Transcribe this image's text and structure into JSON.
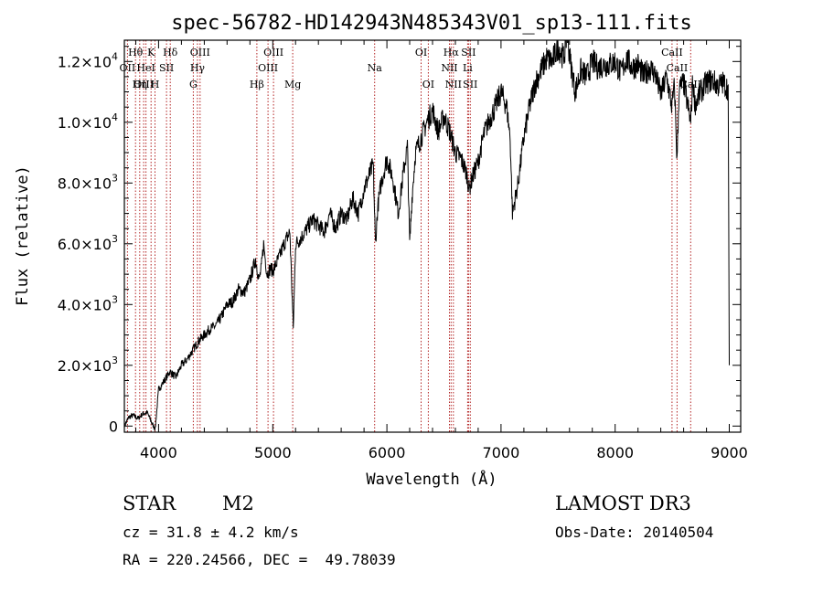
{
  "chart_data": {
    "type": "line",
    "title": "spec-56782-HD142943N485343V01_sp13-111.fits",
    "xlabel": "Wavelength (Å)",
    "ylabel": "Flux (relative)",
    "xlim": [
      3700,
      9100
    ],
    "ylim": [
      -200,
      12700
    ],
    "xticks": [
      4000,
      5000,
      6000,
      7000,
      8000,
      9000
    ],
    "xtick_labels": [
      "4000",
      "5000",
      "6000",
      "7000",
      "8000",
      "9000"
    ],
    "yticks": [
      0,
      2000,
      4000,
      6000,
      8000,
      10000,
      12000
    ],
    "ytick_labels": [
      {
        "mant": "0",
        "exp": ""
      },
      {
        "mant": "2.0×10",
        "exp": "3"
      },
      {
        "mant": "4.0×10",
        "exp": "3"
      },
      {
        "mant": "6.0×10",
        "exp": "3"
      },
      {
        "mant": "8.0×10",
        "exp": "3"
      },
      {
        "mant": "1.0×10",
        "exp": "4"
      },
      {
        "mant": "1.2×10",
        "exp": "4"
      }
    ],
    "grid": false,
    "line_color": "#000000",
    "marker_color": "#b22222",
    "series": [
      {
        "x": [
          3700,
          3740,
          3780,
          3820,
          3860,
          3900,
          3940,
          3970,
          4000,
          4050,
          4100,
          4150,
          4200,
          4250,
          4300,
          4350,
          4400,
          4450,
          4500,
          4550,
          4600,
          4650,
          4700,
          4750,
          4800,
          4850,
          4880,
          4900,
          4920,
          4950,
          4980,
          5000,
          5050,
          5100,
          5150,
          5180,
          5200,
          5250,
          5300,
          5350,
          5400,
          5450,
          5500,
          5550,
          5600,
          5650,
          5700,
          5750,
          5800,
          5850,
          5880,
          5900,
          5920,
          5950,
          6000,
          6050,
          6100,
          6150,
          6180,
          6200,
          6220,
          6250,
          6300,
          6350,
          6400,
          6450,
          6500,
          6550,
          6600,
          6650,
          6700,
          6720,
          6750,
          6800,
          6850,
          6900,
          6950,
          7000,
          7050,
          7080,
          7100,
          7120,
          7150,
          7200,
          7250,
          7300,
          7350,
          7400,
          7450,
          7500,
          7550,
          7580,
          7600,
          7650,
          7700,
          7750,
          7800,
          7850,
          7900,
          7950,
          8000,
          8050,
          8100,
          8150,
          8200,
          8250,
          8300,
          8350,
          8400,
          8450,
          8498,
          8520,
          8542,
          8560,
          8600,
          8662,
          8680,
          8700,
          8750,
          8800,
          8850,
          8900,
          8950,
          8990,
          9000
        ],
        "y": [
          0,
          300,
          350,
          250,
          400,
          450,
          100,
          -100,
          1200,
          1500,
          1800,
          1600,
          2000,
          2200,
          2500,
          2800,
          3000,
          3200,
          3300,
          3600,
          4000,
          4100,
          4500,
          4400,
          4800,
          5500,
          4800,
          5200,
          6000,
          5000,
          5200,
          5100,
          5500,
          6000,
          6400,
          3200,
          6000,
          6200,
          6500,
          6800,
          6600,
          6400,
          7000,
          6500,
          7000,
          6800,
          7500,
          7000,
          7800,
          8300,
          8600,
          6000,
          7200,
          8000,
          8800,
          8200,
          7000,
          8500,
          9200,
          6000,
          7500,
          9000,
          9500,
          10000,
          10400,
          9700,
          10200,
          9700,
          9000,
          8800,
          8300,
          7800,
          8200,
          8700,
          9600,
          10100,
          10500,
          11000,
          10500,
          9500,
          7000,
          7400,
          8000,
          9500,
          10500,
          11300,
          11700,
          12100,
          12000,
          12500,
          12100,
          13000,
          12200,
          11000,
          11700,
          11500,
          12000,
          11800,
          11900,
          11900,
          12000,
          11600,
          12100,
          11800,
          11900,
          11500,
          11800,
          11600,
          10900,
          11500,
          10500,
          11200,
          8700,
          11100,
          11300,
          10000,
          11400,
          10600,
          11000,
          11300,
          11400,
          11200,
          11300,
          11100,
          2000
        ]
      }
    ],
    "line_labels": [
      {
        "label": "Hθ",
        "wl": 3798,
        "row": 1
      },
      {
        "label": "OII",
        "wl": 3727,
        "row": 2
      },
      {
        "label": "OIII",
        "wl": 3869,
        "row": 3
      },
      {
        "label": "Hη",
        "wl": 3835,
        "row": 3
      },
      {
        "label": "K",
        "wl": 3934,
        "row": 1
      },
      {
        "label": "HeI",
        "wl": 3889,
        "row": 2
      },
      {
        "label": "SII",
        "wl": 4069,
        "row": 2
      },
      {
        "label": "H",
        "wl": 3968,
        "row": 3
      },
      {
        "label": "Hδ",
        "wl": 4102,
        "row": 1
      },
      {
        "label": "OIII",
        "wl": 4363,
        "row": 1
      },
      {
        "label": "Hγ",
        "wl": 4340,
        "row": 2
      },
      {
        "label": "G",
        "wl": 4304,
        "row": 3
      },
      {
        "label": "Hβ",
        "wl": 4861,
        "row": 3
      },
      {
        "label": "OIII",
        "wl": 5007,
        "row": 1
      },
      {
        "label": "OIII",
        "wl": 4959,
        "row": 2
      },
      {
        "label": "Mg",
        "wl": 5175,
        "row": 3
      },
      {
        "label": "Na",
        "wl": 5893,
        "row": 2
      },
      {
        "label": "OI",
        "wl": 6300,
        "row": 1
      },
      {
        "label": "OI",
        "wl": 6363,
        "row": 3
      },
      {
        "label": "Hα",
        "wl": 6563,
        "row": 1
      },
      {
        "label": "SII",
        "wl": 6716,
        "row": 1
      },
      {
        "label": "NII",
        "wl": 6548,
        "row": 2
      },
      {
        "label": "Li",
        "wl": 6708,
        "row": 2
      },
      {
        "label": "NII",
        "wl": 6583,
        "row": 3
      },
      {
        "label": "SII",
        "wl": 6731,
        "row": 3
      },
      {
        "label": "CaII",
        "wl": 8498,
        "row": 1
      },
      {
        "label": "CaII",
        "wl": 8542,
        "row": 2
      },
      {
        "label": "CaII",
        "wl": 8662,
        "row": 3
      }
    ],
    "marker_lines": [
      3727,
      3798,
      3835,
      3869,
      3889,
      3934,
      3968,
      4069,
      4102,
      4304,
      4340,
      4363,
      4861,
      4959,
      5007,
      5175,
      5893,
      6300,
      6363,
      6548,
      6563,
      6583,
      6708,
      6716,
      6731,
      8498,
      8542,
      8662
    ]
  },
  "info": {
    "object_class": "STAR",
    "subclass": "M2",
    "survey": "LAMOST DR3",
    "cz": "cz = 31.8 ± 4.2 km/s",
    "obs_date": "Obs-Date: 20140504",
    "coords": "RA = 220.24566, DEC =  49.78039"
  }
}
